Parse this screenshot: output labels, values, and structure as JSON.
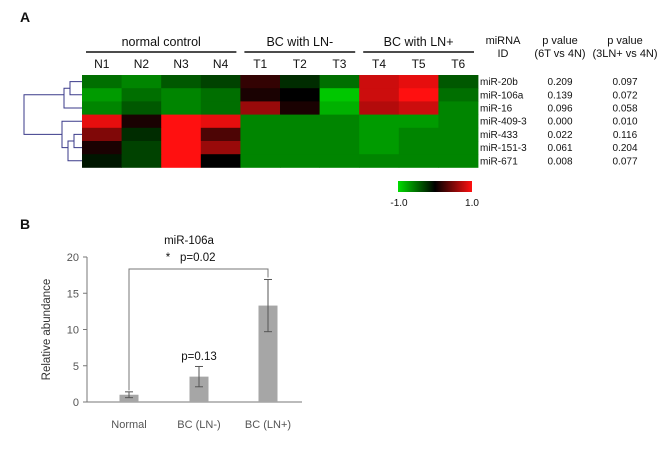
{
  "chart_data": [
    {
      "type": "heatmap",
      "panel": "A",
      "group_labels": [
        "normal control",
        "BC with LN-",
        "BC with LN+"
      ],
      "groups": [
        {
          "label": "normal control",
          "columns": [
            "N1",
            "N2",
            "N3",
            "N4"
          ]
        },
        {
          "label": "BC with LN-",
          "columns": [
            "T1",
            "T2",
            "T3"
          ]
        },
        {
          "label": "BC with LN+",
          "columns": [
            "T4",
            "T5",
            "T6"
          ]
        }
      ],
      "columns": [
        "N1",
        "N2",
        "N3",
        "N4",
        "T1",
        "T2",
        "T3",
        "T4",
        "T5",
        "T6"
      ],
      "id_header": [
        "miRNA",
        "ID"
      ],
      "p_headers": [
        [
          "p value",
          "(6T vs 4N)"
        ],
        [
          "p value",
          "(3LN+ vs 4N)"
        ]
      ],
      "rows": [
        {
          "id": "miR-20b",
          "p1": "0.209",
          "p2": "0.097"
        },
        {
          "id": "miR-106a",
          "p1": "0.139",
          "p2": "0.072"
        },
        {
          "id": "miR-16",
          "p1": "0.096",
          "p2": "0.058"
        },
        {
          "id": "miR-409-3",
          "p1": "0.000",
          "p2": "0.010"
        },
        {
          "id": "miR-433",
          "p1": "0.022",
          "p2": "0.116"
        },
        {
          "id": "miR-151-3",
          "p1": "0.061",
          "p2": "0.204"
        },
        {
          "id": "miR-671",
          "p1": "0.008",
          "p2": "0.077"
        }
      ],
      "values": [
        [
          -0.5,
          -0.6,
          -0.4,
          -0.3,
          0.2,
          -0.2,
          -0.5,
          0.8,
          0.9,
          -0.4
        ],
        [
          -0.7,
          -0.5,
          -0.6,
          -0.5,
          0.1,
          0.0,
          -0.9,
          0.8,
          1.0,
          -0.5
        ],
        [
          -0.6,
          -0.4,
          -0.6,
          -0.5,
          0.6,
          0.1,
          -0.8,
          0.7,
          0.8,
          -0.6
        ],
        [
          0.9,
          0.1,
          1.0,
          0.9,
          -0.6,
          -0.6,
          -0.6,
          -0.7,
          -0.7,
          -0.6
        ],
        [
          0.5,
          -0.2,
          1.0,
          0.3,
          -0.6,
          -0.6,
          -0.6,
          -0.7,
          -0.6,
          -0.6
        ],
        [
          0.1,
          -0.3,
          1.0,
          0.6,
          -0.6,
          -0.6,
          -0.6,
          -0.7,
          -0.6,
          -0.6
        ],
        [
          -0.1,
          -0.3,
          1.0,
          0.0,
          -0.6,
          -0.6,
          -0.6,
          -0.6,
          -0.6,
          -0.6
        ]
      ],
      "colorbar": {
        "min_label": "-1.0",
        "max_label": "1.0",
        "colors": [
          "#00dd00",
          "#000000",
          "#ff1010"
        ]
      },
      "dendrogram": "rows"
    },
    {
      "type": "bar",
      "panel": "B",
      "title": "miR-106a",
      "categories": [
        "Normal",
        "BC (LN-)",
        "BC (LN+)"
      ],
      "values": [
        1.0,
        3.5,
        13.3
      ],
      "errors": [
        0.4,
        1.4,
        3.6
      ],
      "ylabel": "Relative abundance",
      "ylim": [
        0,
        20
      ],
      "yticks": [
        0,
        5,
        10,
        15,
        20
      ],
      "annotations": [
        {
          "text": "p=0.13",
          "category": "BC (LN-)"
        },
        {
          "text": "p=0.02",
          "star": "*",
          "from": "Normal",
          "to": "BC (LN+)"
        }
      ],
      "bar_color": "#a6a6a6"
    }
  ]
}
